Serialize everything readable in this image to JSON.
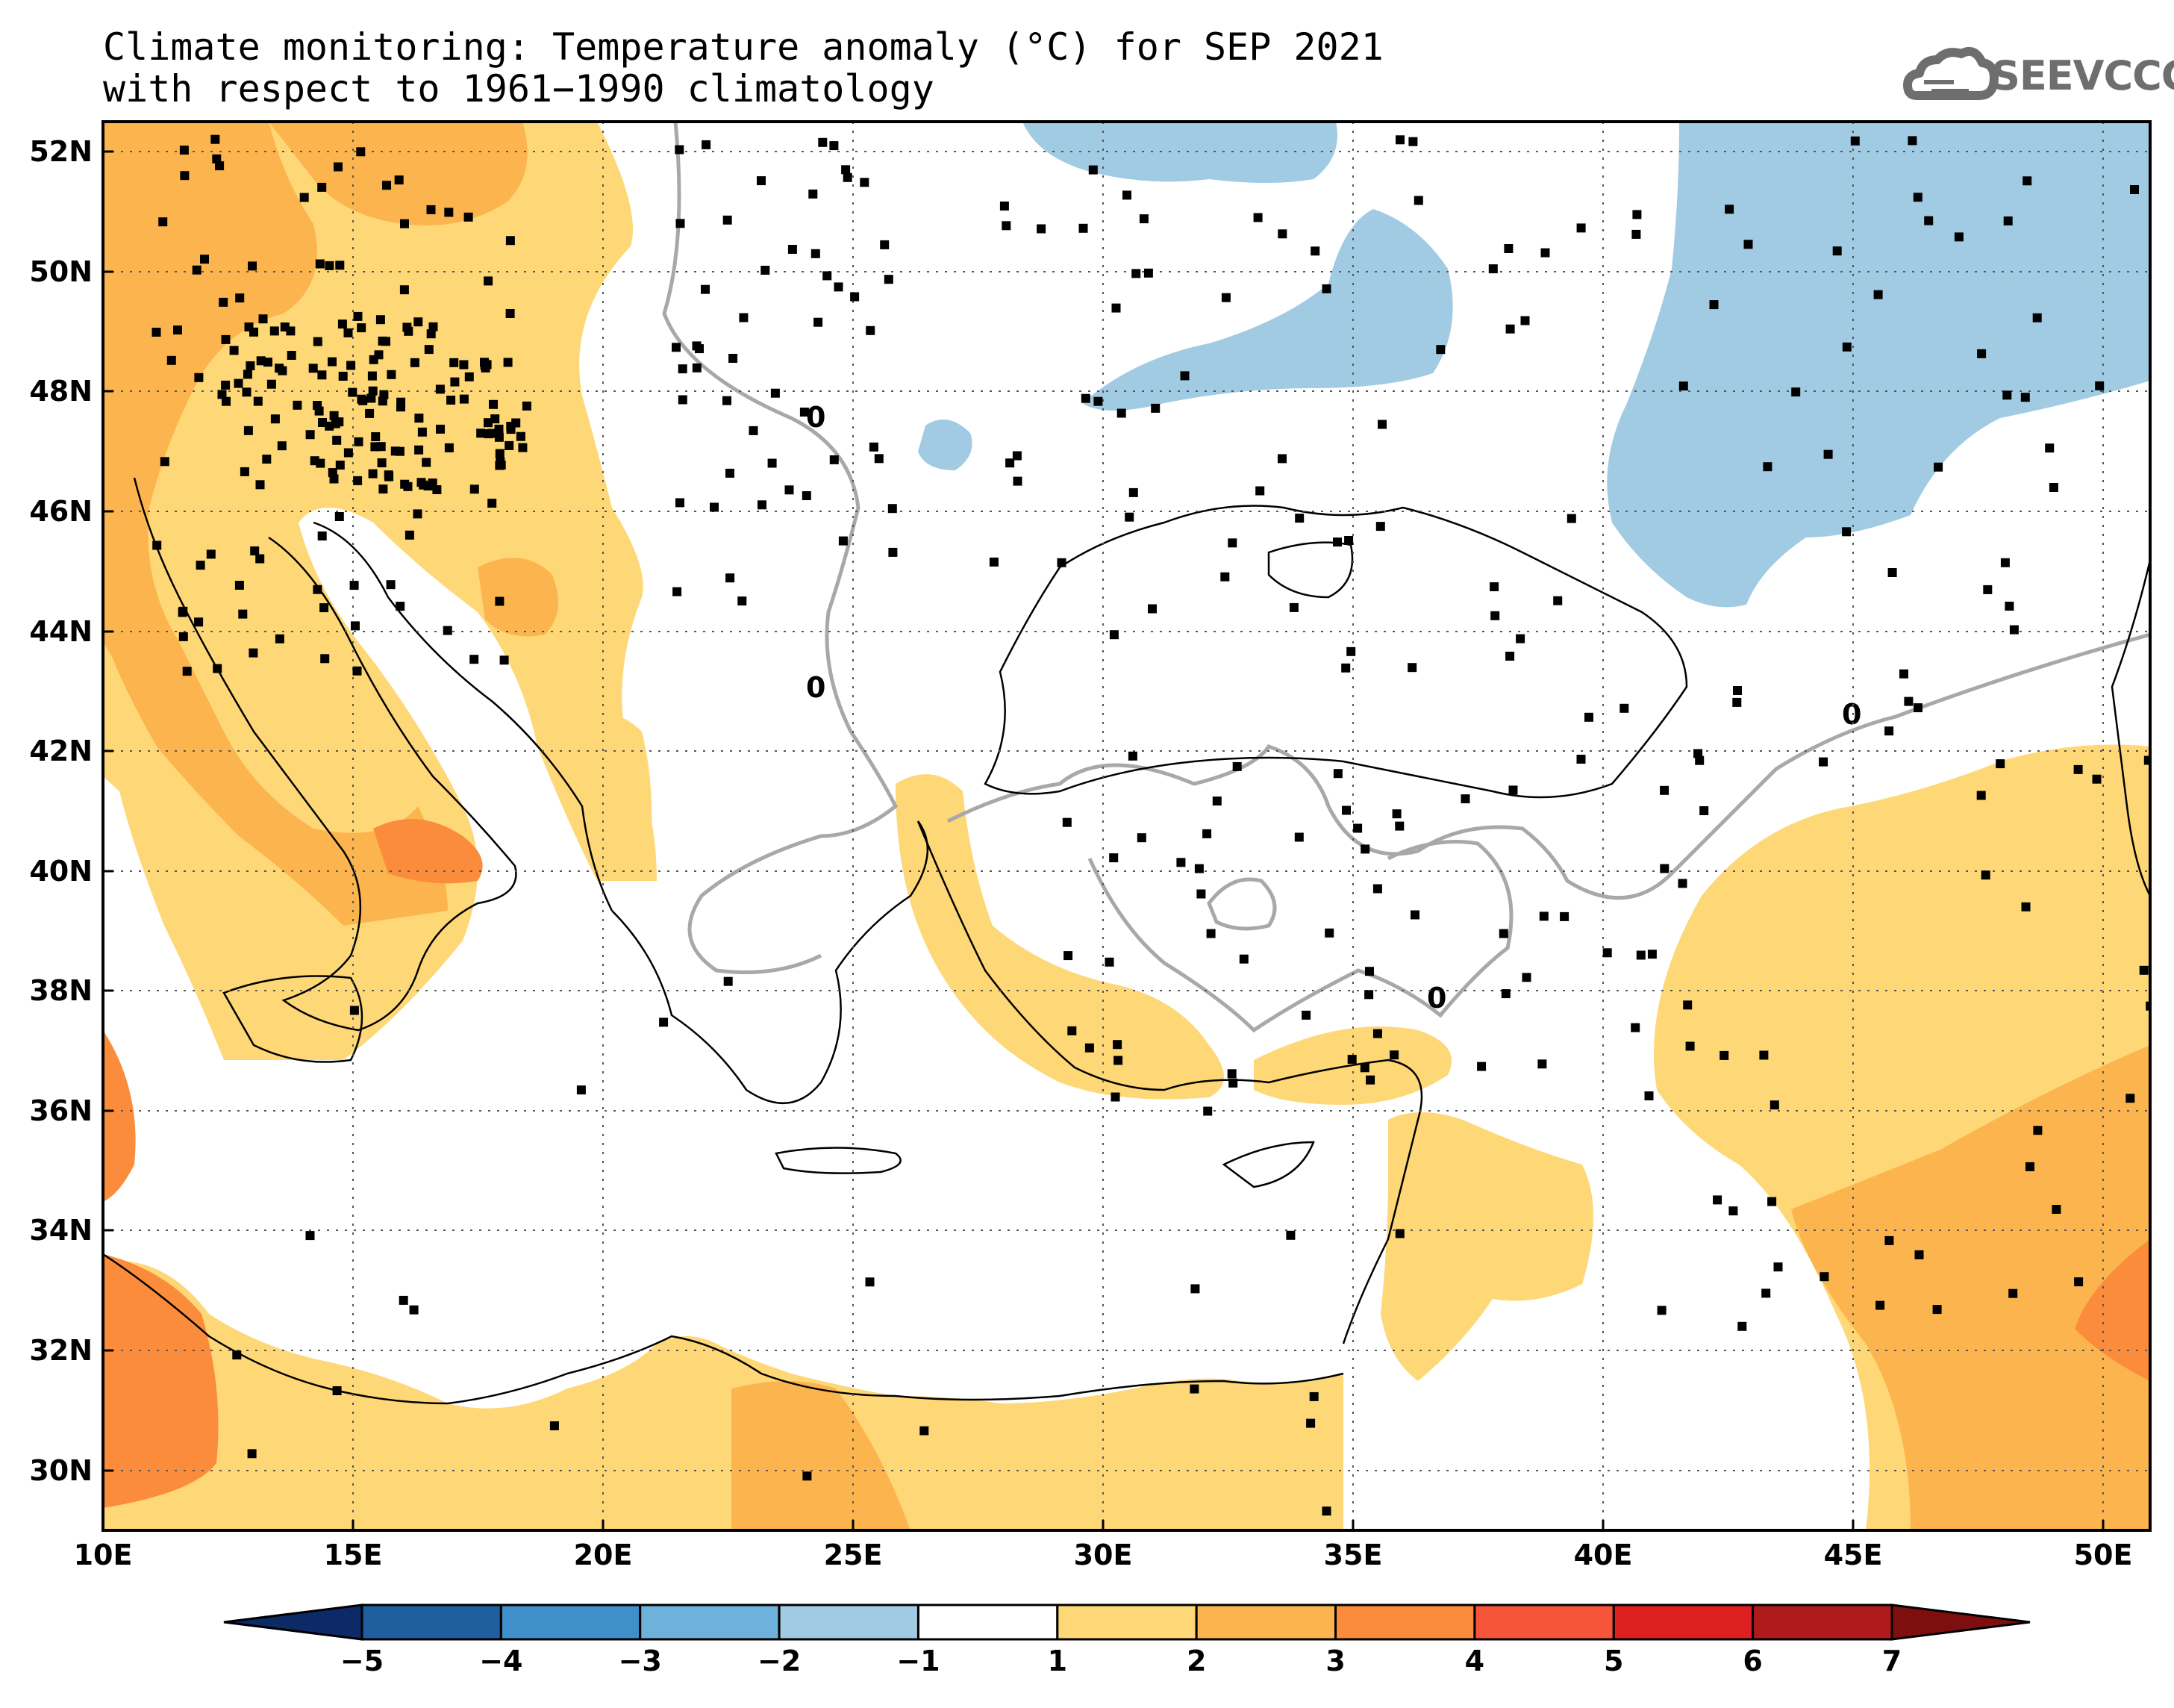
{
  "title": {
    "line1": "Climate monitoring: Temperature anomaly (°C) for SEP 2021",
    "line2": "with respect to 1961−1990 climatology"
  },
  "logo": {
    "text": "SEEVCCC",
    "icon": "cloud-icon"
  },
  "map": {
    "lon_ticks": [
      "10E",
      "15E",
      "20E",
      "25E",
      "30E",
      "35E",
      "40E",
      "45E",
      "50E"
    ],
    "lat_ticks": [
      "52N",
      "50N",
      "48N",
      "46N",
      "44N",
      "42N",
      "40N",
      "38N",
      "36N",
      "34N",
      "32N",
      "30N"
    ],
    "lon_range": [
      10,
      51
    ],
    "lat_range": [
      29,
      52.5
    ],
    "contour_label": "0",
    "grid": "dotted"
  },
  "colorbar": {
    "levels": [
      "−5",
      "−4",
      "−3",
      "−2",
      "−1",
      "1",
      "2",
      "3",
      "4",
      "5",
      "6",
      "7"
    ],
    "colors": [
      "#0b2a66",
      "#1f5fa0",
      "#3f8fca",
      "#6eb1da",
      "#a0cbe3",
      "#ffffff",
      "#fed877",
      "#fcb54e",
      "#fb8c3c",
      "#f7553b",
      "#df2020",
      "#b11a1a",
      "#7e0f0f"
    ]
  }
}
